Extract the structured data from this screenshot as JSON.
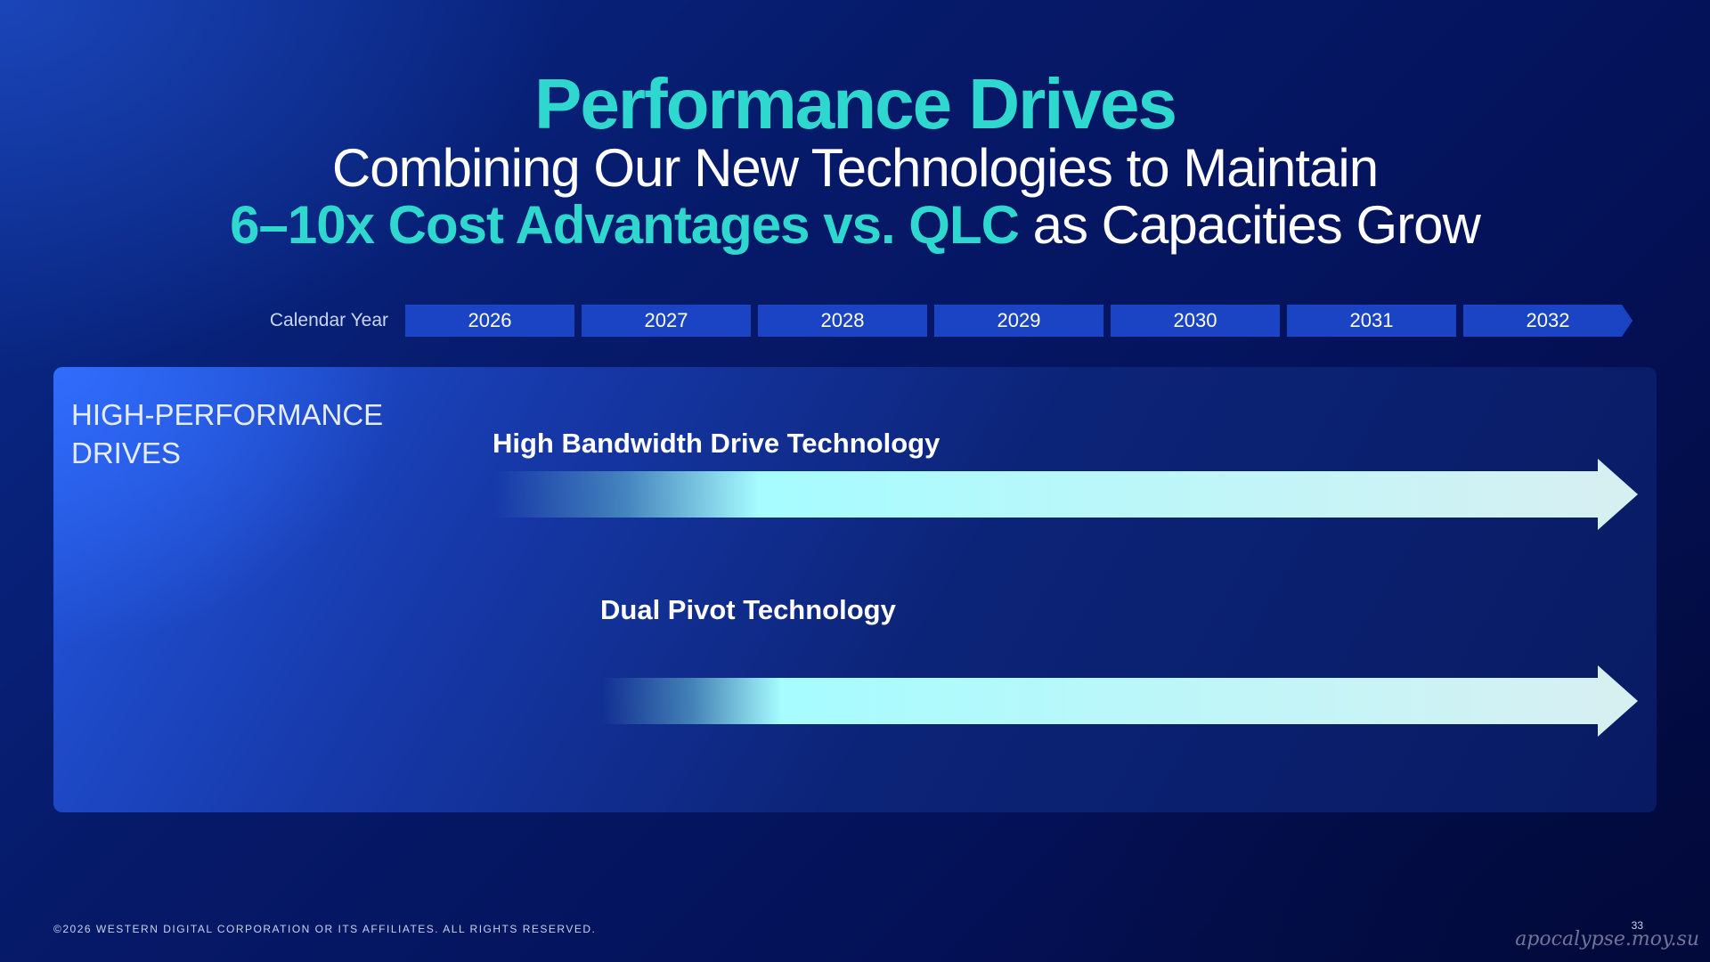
{
  "title": "Performance Drives",
  "subtitle": {
    "line1": "Combining Our New Technologies to Maintain",
    "line2_highlight": "6–10x Cost Advantages vs. QLC",
    "line2_rest": " as Capacities Grow"
  },
  "timeline": {
    "label": "Calendar Year",
    "years": [
      "2026",
      "2027",
      "2028",
      "2029",
      "2030",
      "2031",
      "2032"
    ]
  },
  "panel": {
    "label_line1": "HIGH-PERFORMANCE",
    "label_line2": "DRIVES",
    "rows": [
      {
        "label": "High Bandwidth Drive Technology",
        "start": "2026"
      },
      {
        "label": "Dual Pivot Technology",
        "start": "2027"
      }
    ]
  },
  "colors": {
    "accent": "#2fd8cf",
    "year_box": "#1a44c4",
    "arrow_light": "#d6f0f2",
    "arrow_peak": "#a6fcff"
  },
  "footer": {
    "copyright": "©2026 WESTERN DIGITAL CORPORATION OR ITS AFFILIATES. ALL RIGHTS RESERVED.",
    "page_number": "33"
  },
  "watermark": "apocalypse.moy.su"
}
